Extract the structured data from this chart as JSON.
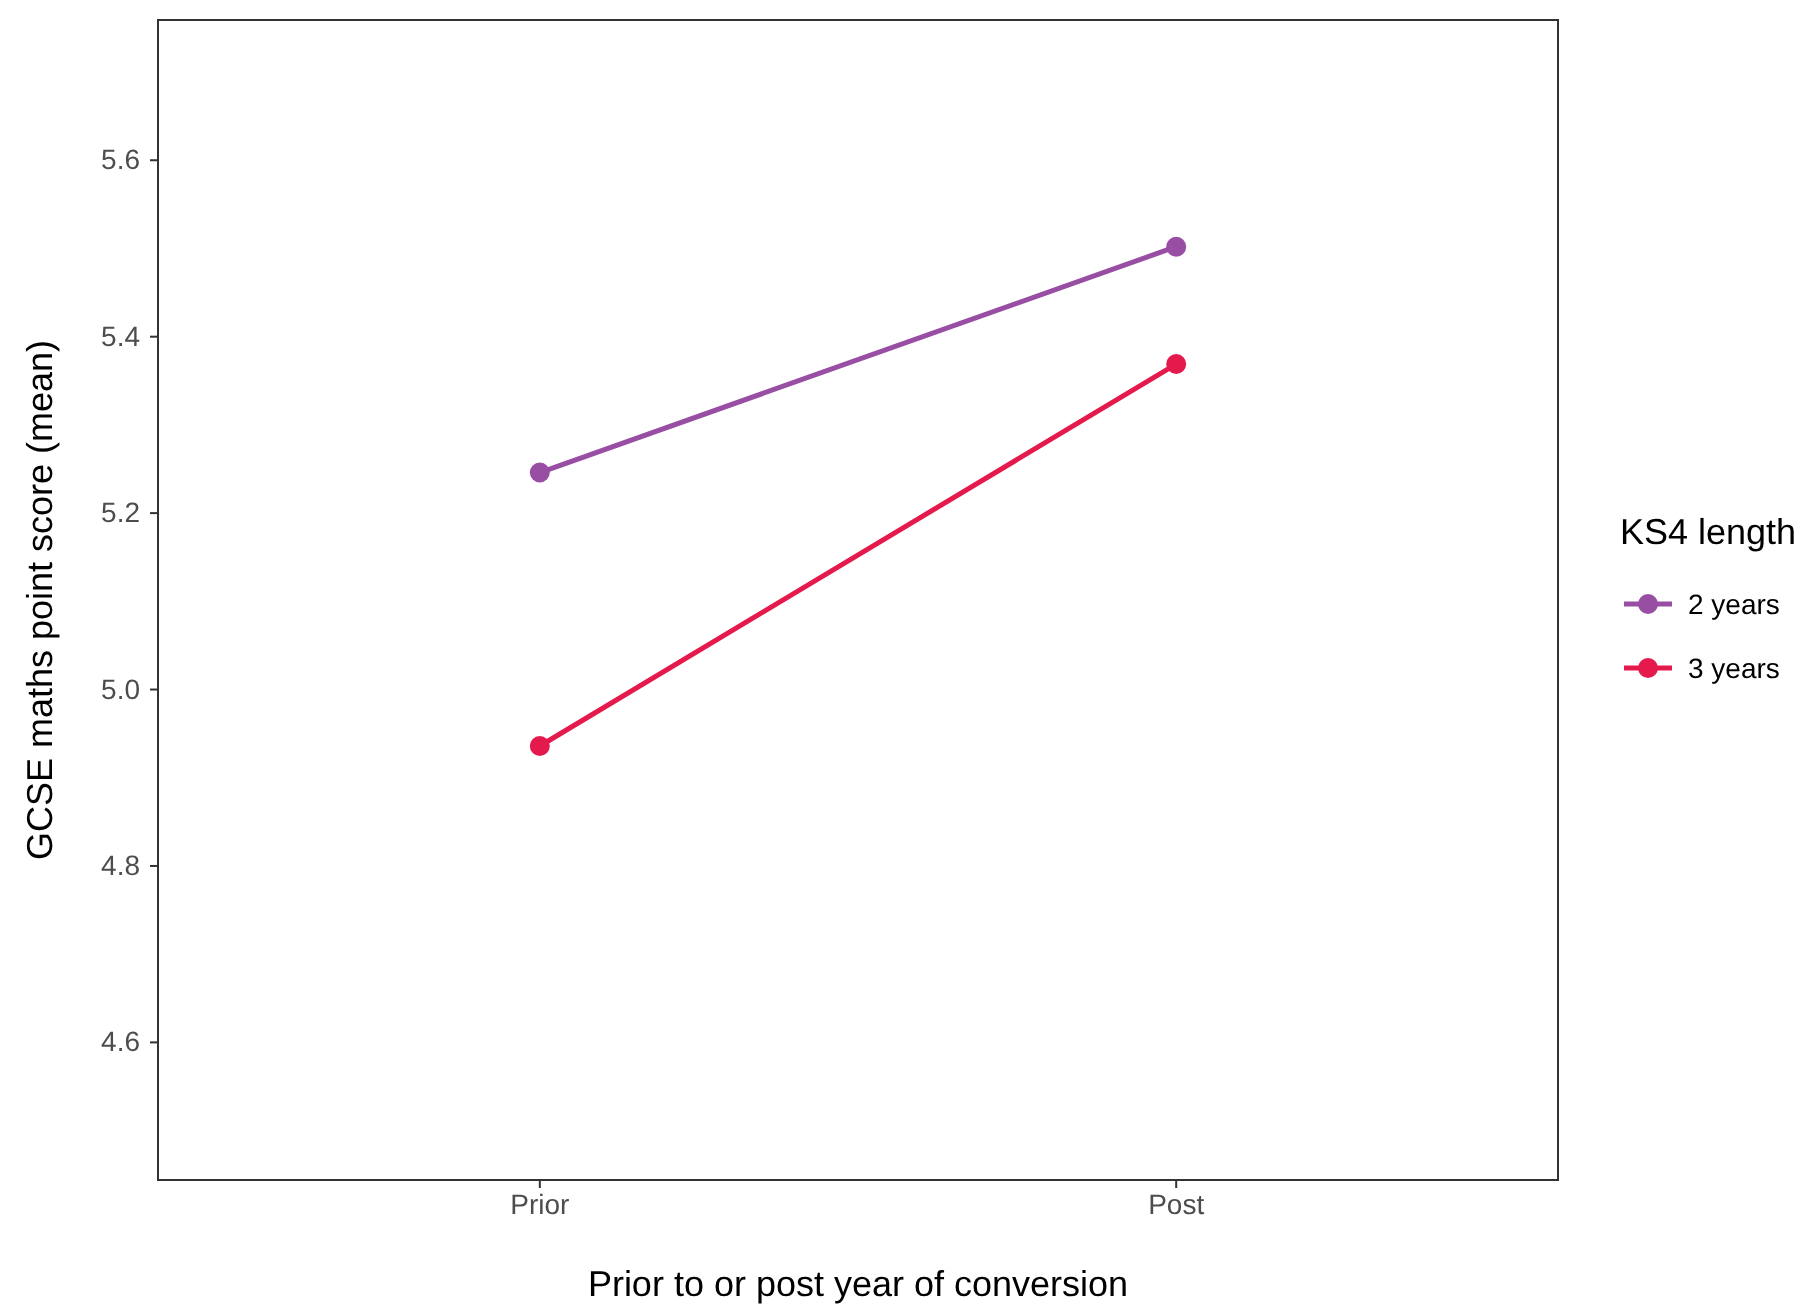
{
  "chart_data": {
    "type": "line",
    "xlabel": "Prior to or post year of conversion",
    "ylabel": "GCSE maths point score (mean)",
    "legend_title": "KS4 length",
    "categories": [
      "Prior",
      "Post"
    ],
    "series": [
      {
        "name": "2 years",
        "color": "#984ea3",
        "values": [
          5.246,
          5.502
        ]
      },
      {
        "name": "3 years",
        "color": "#e41a4c",
        "values": [
          4.936,
          5.369
        ]
      }
    ],
    "ylim": [
      4.444,
      5.759
    ],
    "yticks": [
      {
        "value": 4.6,
        "label": "4.6"
      },
      {
        "value": 4.8,
        "label": "4.8"
      },
      {
        "value": 5.0,
        "label": "5.0"
      },
      {
        "value": 5.2,
        "label": "5.2"
      },
      {
        "value": 5.4,
        "label": "5.4"
      },
      {
        "value": 5.6,
        "label": "5.6"
      }
    ],
    "grid": false,
    "legend": "right",
    "marker": "circle",
    "line_style": "solid"
  }
}
